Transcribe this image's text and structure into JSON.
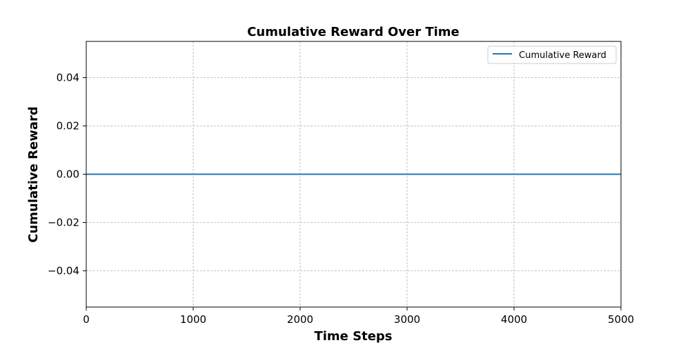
{
  "chart_data": {
    "type": "line",
    "title": "Cumulative Reward Over Time",
    "xlabel": "Time Steps",
    "ylabel": "Cumulative Reward",
    "xlim": [
      0,
      5000
    ],
    "ylim": [
      -0.055,
      0.055
    ],
    "x_ticks": [
      0,
      1000,
      2000,
      3000,
      4000,
      5000
    ],
    "x_tick_labels": [
      "0",
      "1000",
      "2000",
      "3000",
      "4000",
      "5000"
    ],
    "y_ticks": [
      -0.04,
      -0.02,
      0.0,
      0.02,
      0.04
    ],
    "y_tick_labels": [
      "−0.04",
      "−0.02",
      "0.00",
      "0.02",
      "0.04"
    ],
    "grid": true,
    "legend_position": "top-right",
    "series": [
      {
        "name": "Cumulative Reward",
        "color": "#1f77b4",
        "x": [
          0,
          5000
        ],
        "y": [
          0,
          0
        ]
      }
    ]
  }
}
